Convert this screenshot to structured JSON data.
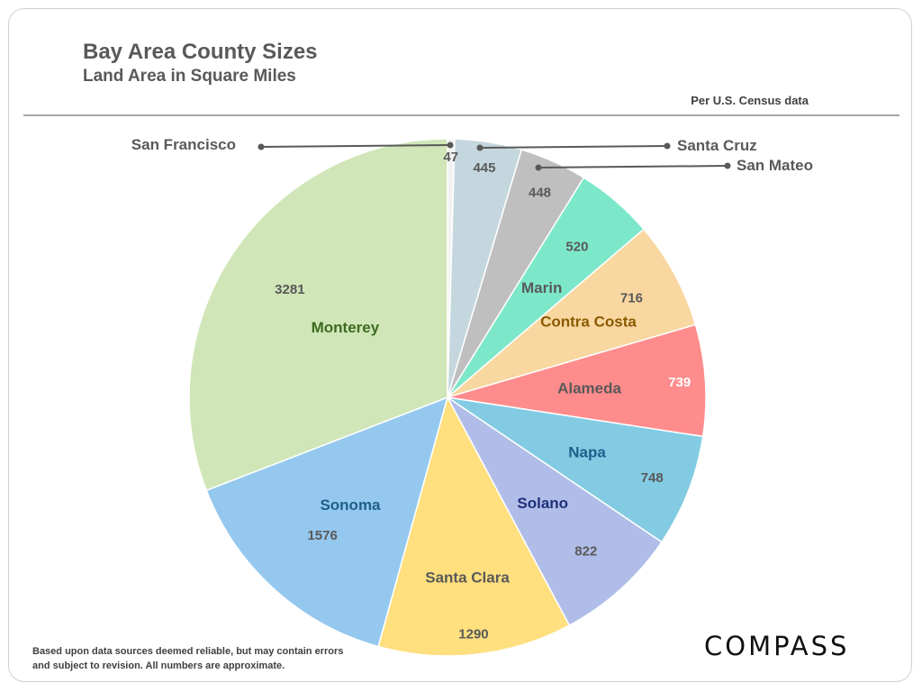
{
  "header": {
    "title": "Bay Area County Sizes",
    "subtitle": "Land Area in Square Miles",
    "source_note": "Per U.S. Census data"
  },
  "footer": {
    "disclaimer": "Based upon data sources deemed reliable, but may contain errors and subject to revision. All numbers are approximate.",
    "logo_text": "COMPASS"
  },
  "chart_data": {
    "type": "pie",
    "title": "Bay Area County Sizes",
    "subtitle": "Land Area in Square Miles",
    "unit": "square miles",
    "start_angle": "12 o'clock",
    "direction": "clockwise",
    "slices": [
      {
        "name": "San Francisco",
        "value": 47,
        "color": "#f2f2f2",
        "label_color": "#595959"
      },
      {
        "name": "Santa Cruz",
        "value": 445,
        "color": "#c5d7de",
        "label_color": "#595959"
      },
      {
        "name": "San Mateo",
        "value": 448,
        "color": "#bfbfbf",
        "label_color": "#595959"
      },
      {
        "name": "Marin",
        "value": 520,
        "color": "#7de8c9",
        "label_color": "#595959"
      },
      {
        "name": "Contra Costa",
        "value": 716,
        "color": "#f8d7a0",
        "label_color": "#8a5a00"
      },
      {
        "name": "Alameda",
        "value": 739,
        "color": "#ff8c8c",
        "label_color": "#595959",
        "value_color": "#ffffff"
      },
      {
        "name": "Napa",
        "value": 748,
        "color": "#82cbe3",
        "label_color": "#1f5f8b"
      },
      {
        "name": "Solano",
        "value": 822,
        "color": "#b0bde8",
        "label_color": "#1f2f7a"
      },
      {
        "name": "Santa Clara",
        "value": 1290,
        "color": "#ffdf7e",
        "label_color": "#595959"
      },
      {
        "name": "Sonoma",
        "value": 1576,
        "color": "#95c8ee",
        "label_color": "#1f5f8b"
      },
      {
        "name": "Monterey",
        "value": 3281,
        "color": "#d0e6b8",
        "label_color": "#3d6b1f"
      }
    ],
    "external_labels": [
      "San Francisco",
      "Santa Cruz",
      "San Mateo"
    ]
  }
}
